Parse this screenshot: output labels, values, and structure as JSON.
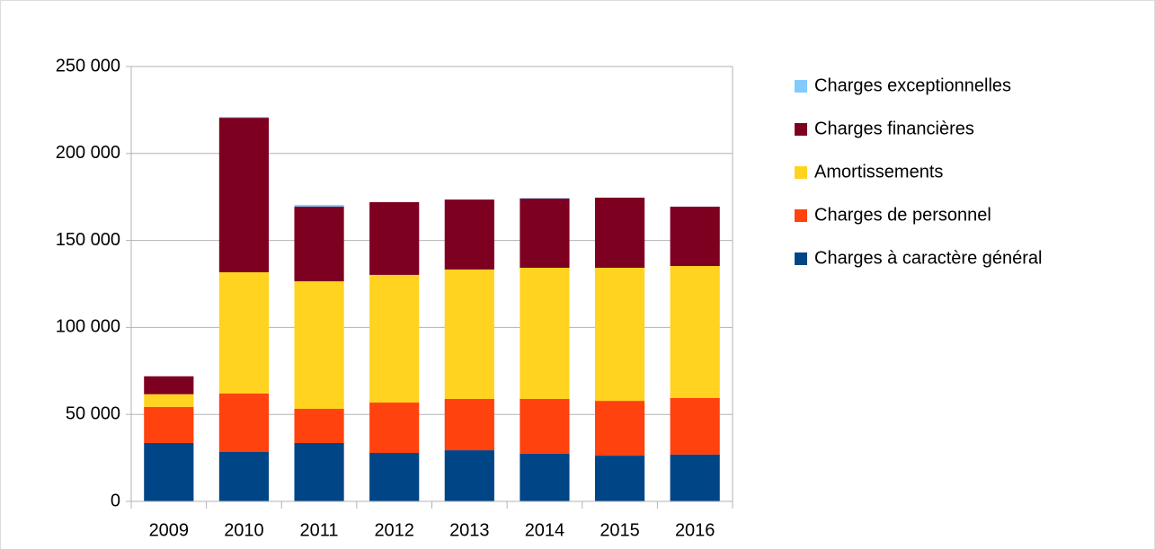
{
  "chart_data": {
    "type": "stacked_bar",
    "categories": [
      "2009",
      "2010",
      "2011",
      "2012",
      "2013",
      "2014",
      "2015",
      "2016"
    ],
    "series": [
      {
        "name": "Charges à caractère général",
        "color": "#004586",
        "values": [
          33600,
          28400,
          33600,
          27900,
          29400,
          27400,
          26300,
          26900
        ]
      },
      {
        "name": "Charges de personnel",
        "color": "#ff420e",
        "values": [
          20700,
          33600,
          19600,
          28900,
          29500,
          31500,
          31500,
          32500
        ]
      },
      {
        "name": "Amortissements",
        "color": "#ffd320",
        "values": [
          7300,
          69700,
          73300,
          73400,
          74400,
          75400,
          76500,
          75900
        ]
      },
      {
        "name": "Charges financières",
        "color": "#7e0021",
        "values": [
          10300,
          88800,
          42900,
          41800,
          40200,
          39800,
          40300,
          34100
        ]
      },
      {
        "name": "Charges exceptionnelles",
        "color": "#83caff",
        "values": [
          0,
          500,
          1000,
          0,
          0,
          300,
          0,
          0
        ]
      }
    ],
    "ylim": [
      0,
      250000
    ],
    "yticks": [
      {
        "value": 0,
        "label": "0"
      },
      {
        "value": 50000,
        "label": "50 000"
      },
      {
        "value": 100000,
        "label": "100 000"
      },
      {
        "value": 150000,
        "label": "150 000"
      },
      {
        "value": 200000,
        "label": "200 000"
      },
      {
        "value": 250000,
        "label": "250 000"
      }
    ],
    "grid": true,
    "legend": "right"
  }
}
